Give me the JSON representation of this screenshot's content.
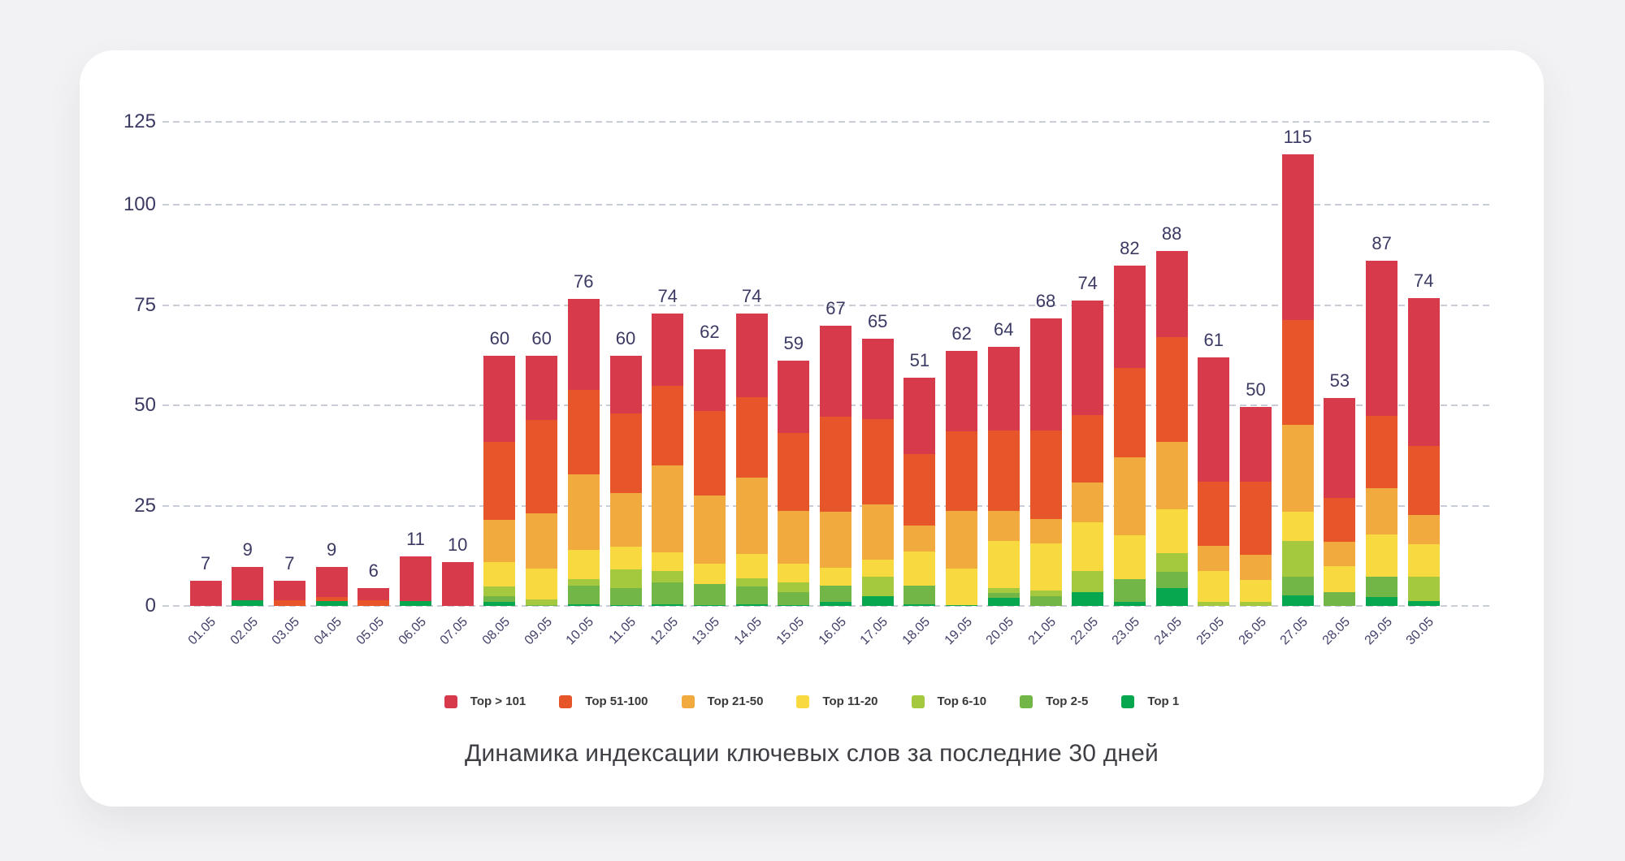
{
  "title": "Динамика индексации ключевых слов за последние 30 дней",
  "chart_data": {
    "type": "bar",
    "stacked": true,
    "grid": "dashed-horizontal",
    "legend_position": "bottom-center",
    "ylim": [
      0,
      125
    ],
    "yticks": [
      0,
      25,
      50,
      75,
      100,
      125
    ],
    "categories": [
      "01.05",
      "02.05",
      "03.05",
      "04.05",
      "05.05",
      "06.05",
      "07.05",
      "08.05",
      "09.05",
      "10.05",
      "11.05",
      "12.05",
      "13.05",
      "14.05",
      "15.05",
      "16.05",
      "17.05",
      "18.05",
      "19.05",
      "20.05",
      "21.05",
      "22.05",
      "23.05",
      "24.05",
      "25.05",
      "26.05",
      "27.05",
      "28.05",
      "29.05",
      "30.05"
    ],
    "total_labels": [
      7,
      9,
      7,
      9,
      6,
      11,
      10,
      60,
      60,
      76,
      60,
      74,
      62,
      74,
      59,
      67,
      65,
      51,
      62,
      64,
      68,
      74,
      82,
      88,
      61,
      50,
      115,
      53,
      87,
      74
    ],
    "series": [
      {
        "name": "Top 1",
        "color": "#07a74f",
        "values": [
          0,
          1.4,
          0,
          1.2,
          0,
          1.3,
          0,
          1.0,
          0,
          0.5,
          0.3,
          0.4,
          0.2,
          0.5,
          0.3,
          1.0,
          2.5,
          0.4,
          0.2,
          2.0,
          0,
          3.5,
          1.0,
          4.5,
          0,
          0,
          2.6,
          0,
          2.2,
          1.3
        ]
      },
      {
        "name": "Top 2-5",
        "color": "#71b647",
        "values": [
          0,
          0,
          0,
          0,
          0,
          0,
          0,
          1.5,
          0.3,
          4.6,
          4.2,
          5.5,
          5.2,
          4.4,
          3.2,
          4.1,
          0,
          4.7,
          0,
          1.2,
          2.4,
          0,
          5.6,
          4.1,
          0,
          0,
          4.8,
          3.5,
          5.2,
          0
        ]
      },
      {
        "name": "Top 6-10",
        "color": "#a4c93f",
        "values": [
          0,
          0,
          0,
          0,
          0,
          0,
          0,
          2.3,
          1.4,
          1.5,
          4.6,
          2.8,
          0,
          2.0,
          2.4,
          0,
          4.9,
          0,
          0,
          1.3,
          1.5,
          5.2,
          0,
          4.5,
          1.0,
          1.0,
          8.8,
          0,
          0,
          6.0
        ]
      },
      {
        "name": "Top 11-20",
        "color": "#f9d940",
        "values": [
          0,
          0,
          0,
          0,
          0,
          0,
          0,
          6.2,
          7.6,
          7.4,
          5.8,
          4.6,
          5.2,
          6.1,
          4.6,
          4.5,
          4.2,
          8.4,
          9.1,
          11.7,
          11.8,
          12.1,
          11.1,
          11.0,
          7.7,
          5.4,
          7.4,
          6.4,
          10.4,
          8.2
        ]
      },
      {
        "name": "Top 21-50",
        "color": "#f0aa3e",
        "values": [
          0,
          0,
          0,
          0,
          0,
          0,
          0,
          10.5,
          13.9,
          18.8,
          13.3,
          21.8,
          16.9,
          19.1,
          13.3,
          14.0,
          13.7,
          6.6,
          14.5,
          7.6,
          6.1,
          10.1,
          19.4,
          16.8,
          6.3,
          6.4,
          21.6,
          6.1,
          11.6,
          7.2
        ]
      },
      {
        "name": "Top 51-100",
        "color": "#e7552a",
        "values": [
          0,
          0,
          1.4,
          1.0,
          1.4,
          0,
          0,
          19.5,
          23.3,
          21.2,
          19.9,
          19.9,
          21.1,
          20.1,
          19.4,
          23.7,
          21.3,
          17.9,
          19.8,
          20.1,
          22.1,
          16.7,
          22.3,
          26.2,
          16.0,
          18.2,
          26.3,
          11.0,
          18.1,
          17.2
        ]
      },
      {
        "name": "Top > 101",
        "color": "#d73a4b",
        "values": [
          6.3,
          8.4,
          4.8,
          7.6,
          3.0,
          11.0,
          11.0,
          21.5,
          15.9,
          22.6,
          14.4,
          18.0,
          15.6,
          20.8,
          18.1,
          22.6,
          20.1,
          19.1,
          20.1,
          20.8,
          27.9,
          28.6,
          25.6,
          21.6,
          31.1,
          18.8,
          41.3,
          24.9,
          38.8,
          37.0
        ]
      }
    ],
    "legend_order": [
      "Top > 101",
      "Top 51-100",
      "Top 21-50",
      "Top 11-20",
      "Top 6-10",
      "Top 2-5",
      "Top 1"
    ]
  }
}
